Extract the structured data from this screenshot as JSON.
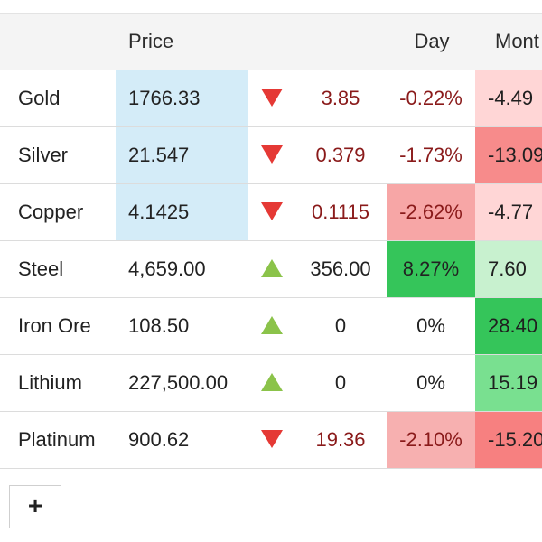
{
  "header": {
    "price": "Price",
    "day": "Day",
    "month": "Mont"
  },
  "rows": [
    {
      "name": "Gold",
      "price": "1766.33",
      "price_highlight": true,
      "direction": "down",
      "change": "3.85",
      "day": "-0.22%",
      "day_bg": "",
      "month": "-4.49",
      "month_bg": "#ffd6d6",
      "change_class": "neg",
      "day_class": "neg"
    },
    {
      "name": "Silver",
      "price": "21.547",
      "price_highlight": true,
      "direction": "down",
      "change": "0.379",
      "day": "-1.73%",
      "day_bg": "",
      "month": "-13.09",
      "month_bg": "#f78b8b",
      "change_class": "neg",
      "day_class": "neg"
    },
    {
      "name": "Copper",
      "price": "4.1425",
      "price_highlight": true,
      "direction": "down",
      "change": "0.1115",
      "day": "-2.62%",
      "day_bg": "#f7a6a6",
      "month": "-4.77",
      "month_bg": "#ffd6d6",
      "change_class": "neg",
      "day_class": "neg"
    },
    {
      "name": "Steel",
      "price": "4,659.00",
      "price_highlight": false,
      "direction": "up",
      "change": "356.00",
      "day": "8.27%",
      "day_bg": "#35c55a",
      "month": "7.60",
      "month_bg": "#c8f1cf",
      "change_class": "posv",
      "day_class": "posv"
    },
    {
      "name": "Iron Ore",
      "price": "108.50",
      "price_highlight": false,
      "direction": "up",
      "change": "0",
      "day": "0%",
      "day_bg": "",
      "month": "28.40",
      "month_bg": "#35c55a",
      "change_class": "zero",
      "day_class": "zero"
    },
    {
      "name": "Lithium",
      "price": "227,500.00",
      "price_highlight": false,
      "direction": "up",
      "change": "0",
      "day": "0%",
      "day_bg": "",
      "month": "15.19",
      "month_bg": "#79e090",
      "change_class": "zero",
      "day_class": "zero"
    },
    {
      "name": "Platinum",
      "price": "900.62",
      "price_highlight": false,
      "direction": "down",
      "change": "19.36",
      "day": "-2.10%",
      "day_bg": "#f7b0b0",
      "month": "-15.20",
      "month_bg": "#f78080",
      "change_class": "neg",
      "day_class": "neg"
    }
  ],
  "add_button": {
    "label": "+"
  },
  "colors": {
    "price_highlight_bg": "#d4ecf8",
    "down_arrow": "#e53935",
    "up_arrow": "#8bc34a",
    "negative_text": "#8a1a1a"
  },
  "icons": {
    "down": "triangle-down-icon",
    "up": "triangle-up-icon",
    "add": "plus-icon"
  }
}
